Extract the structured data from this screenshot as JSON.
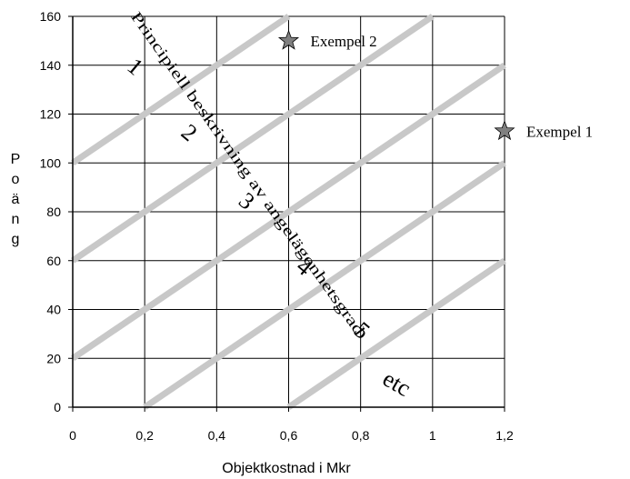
{
  "chart_data": {
    "type": "line",
    "xlabel": "Objektkostnad i Mkr",
    "ylabel": "Poäng",
    "xlim": [
      0,
      1.2
    ],
    "ylim": [
      0,
      160
    ],
    "x_ticks": [
      "0",
      "0,2",
      "0,4",
      "0,6",
      "0,8",
      "1",
      "1,2"
    ],
    "x_tick_values": [
      0,
      0.2,
      0.4,
      0.6,
      0.8,
      1.0,
      1.2
    ],
    "y_ticks": [
      "0",
      "20",
      "40",
      "60",
      "80",
      "100",
      "120",
      "140",
      "160"
    ],
    "y_tick_values": [
      0,
      20,
      40,
      60,
      80,
      100,
      120,
      140,
      160
    ],
    "grid": true,
    "line_color": "#c8c8c8",
    "series": [
      {
        "x": [
          0,
          0.6
        ],
        "y": [
          100,
          160
        ]
      },
      {
        "x": [
          0,
          1.0
        ],
        "y": [
          60,
          160
        ]
      },
      {
        "x": [
          0,
          1.2
        ],
        "y": [
          20,
          140
        ]
      },
      {
        "x": [
          0.2,
          1.2
        ],
        "y": [
          0,
          100
        ]
      },
      {
        "x": [
          0.6,
          1.2
        ],
        "y": [
          0,
          60
        ]
      }
    ],
    "zone_labels": [
      {
        "text": "1",
        "x": 0.16,
        "y": 137
      },
      {
        "text": "2",
        "x": 0.31,
        "y": 110
      },
      {
        "text": "3",
        "x": 0.47,
        "y": 82
      },
      {
        "text": "4",
        "x": 0.63,
        "y": 55
      },
      {
        "text": "5",
        "x": 0.79,
        "y": 29
      }
    ],
    "etc_label": {
      "text": "etc",
      "x": 0.89,
      "y": 7
    },
    "diagonal_label": {
      "text": "Principiell beskrivning av angelägenhetsgrad",
      "x1": 0.16,
      "y1": 160,
      "x2": 0.79,
      "y2": 29
    },
    "points": [
      {
        "name": "Exempel 2",
        "x": 0.6,
        "y": 150,
        "marker": "star",
        "color": "#808080"
      },
      {
        "name": "Exempel 1",
        "x": 1.2,
        "y": 113,
        "marker": "star",
        "color": "#808080"
      }
    ]
  }
}
